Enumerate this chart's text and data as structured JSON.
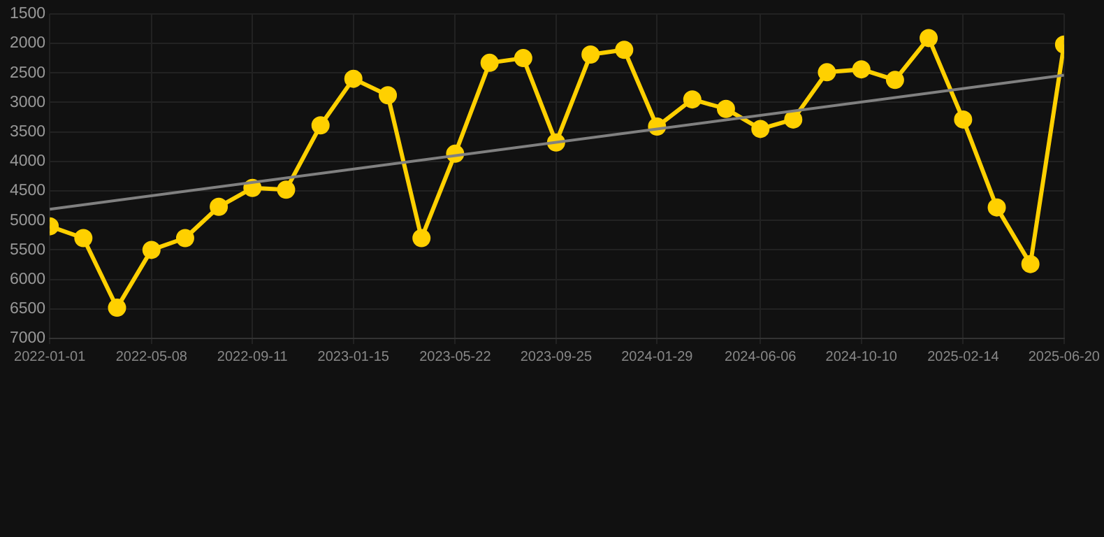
{
  "chart_data": {
    "type": "line",
    "x": [
      "2022-01-01",
      "2022-02-12",
      "2022-03-26",
      "2022-05-08",
      "2022-06-19",
      "2022-07-31",
      "2022-09-11",
      "2022-10-23",
      "2022-12-05",
      "2023-01-15",
      "2023-02-27",
      "2023-04-10",
      "2023-05-22",
      "2023-07-04",
      "2023-08-15",
      "2023-09-25",
      "2023-11-07",
      "2023-12-19",
      "2024-01-29",
      "2024-03-13",
      "2024-04-24",
      "2024-06-06",
      "2024-07-17",
      "2024-08-28",
      "2024-10-10",
      "2024-11-21",
      "2025-01-02",
      "2025-02-14",
      "2025-03-28",
      "2025-05-09",
      "2025-06-20"
    ],
    "series": [
      {
        "color": "#ffd000",
        "marker": "circle",
        "values": [
          5100,
          5300,
          6480,
          5500,
          5300,
          4770,
          4450,
          4480,
          3390,
          2600,
          2880,
          5300,
          3870,
          2330,
          2250,
          3680,
          2190,
          2110,
          3410,
          2950,
          3110,
          3450,
          3290,
          2490,
          2440,
          2620,
          1910,
          3290,
          4780,
          5740,
          2020
        ]
      },
      {
        "type": "line",
        "color": "#808080",
        "marker": "none",
        "x": [
          "2022-01-01",
          "2025-06-20"
        ],
        "values": [
          4810,
          2540
        ]
      }
    ],
    "xlim": [
      "2022-01-01",
      "2025-06-20"
    ],
    "xticks": [
      "2022-01-01",
      "2022-05-08",
      "2022-09-11",
      "2023-01-15",
      "2023-05-22",
      "2023-09-25",
      "2024-01-29",
      "2024-06-06",
      "2024-10-10",
      "2025-02-14",
      "2025-06-20"
    ],
    "ylim": [
      7000,
      1500
    ],
    "yticks": [
      1500,
      2000,
      2500,
      3000,
      3500,
      4000,
      4500,
      5000,
      5500,
      6000,
      6500,
      7000
    ],
    "grid": true
  }
}
